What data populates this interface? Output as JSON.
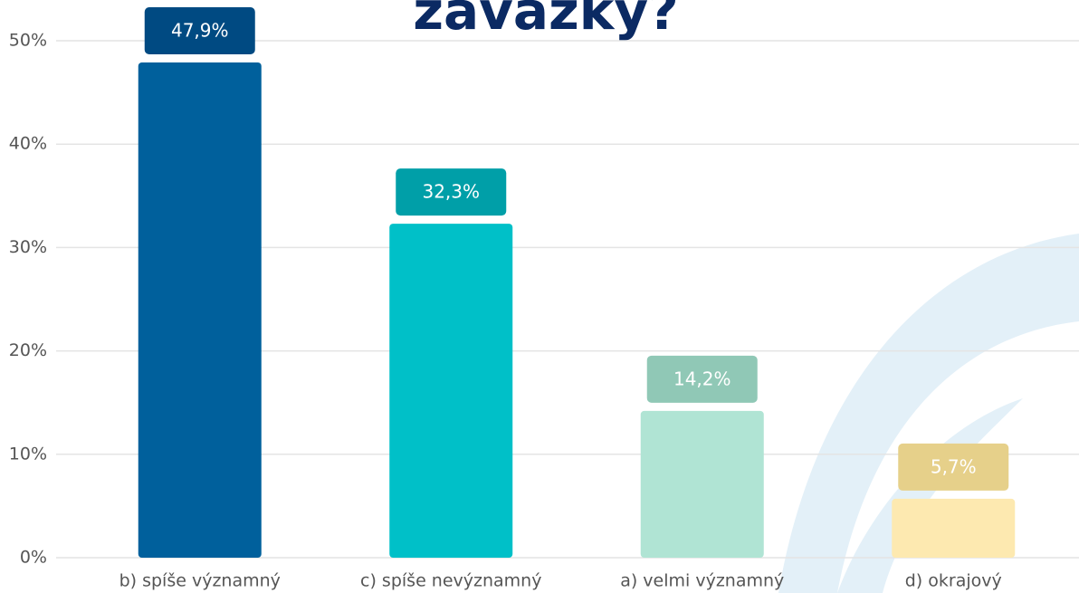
{
  "chart_data": {
    "type": "bar",
    "title": "závazky?",
    "categories": [
      "b) spíše významný",
      "c) spíše nevýznamný",
      "a) velmi významný",
      "d) okrajový"
    ],
    "values": [
      47.9,
      32.3,
      14.2,
      5.7
    ],
    "value_labels": [
      "47,9%",
      "32,3%",
      "14,2%",
      "5,7%"
    ],
    "colors": [
      "#00609c",
      "#00c0c8",
      "#b0e4d4",
      "#fde9b0"
    ],
    "label_colors": [
      "#004a82",
      "#009fa8",
      "#90c8b6",
      "#e6d08a"
    ],
    "ylim": [
      0,
      50
    ],
    "yticks": [
      {
        "value": 0,
        "label": "0%"
      },
      {
        "value": 10,
        "label": "10%"
      },
      {
        "value": 20,
        "label": "20%"
      },
      {
        "value": 30,
        "label": "30%"
      },
      {
        "value": 40,
        "label": "40%"
      },
      {
        "value": 50,
        "label": "50%"
      }
    ],
    "grid": true
  }
}
